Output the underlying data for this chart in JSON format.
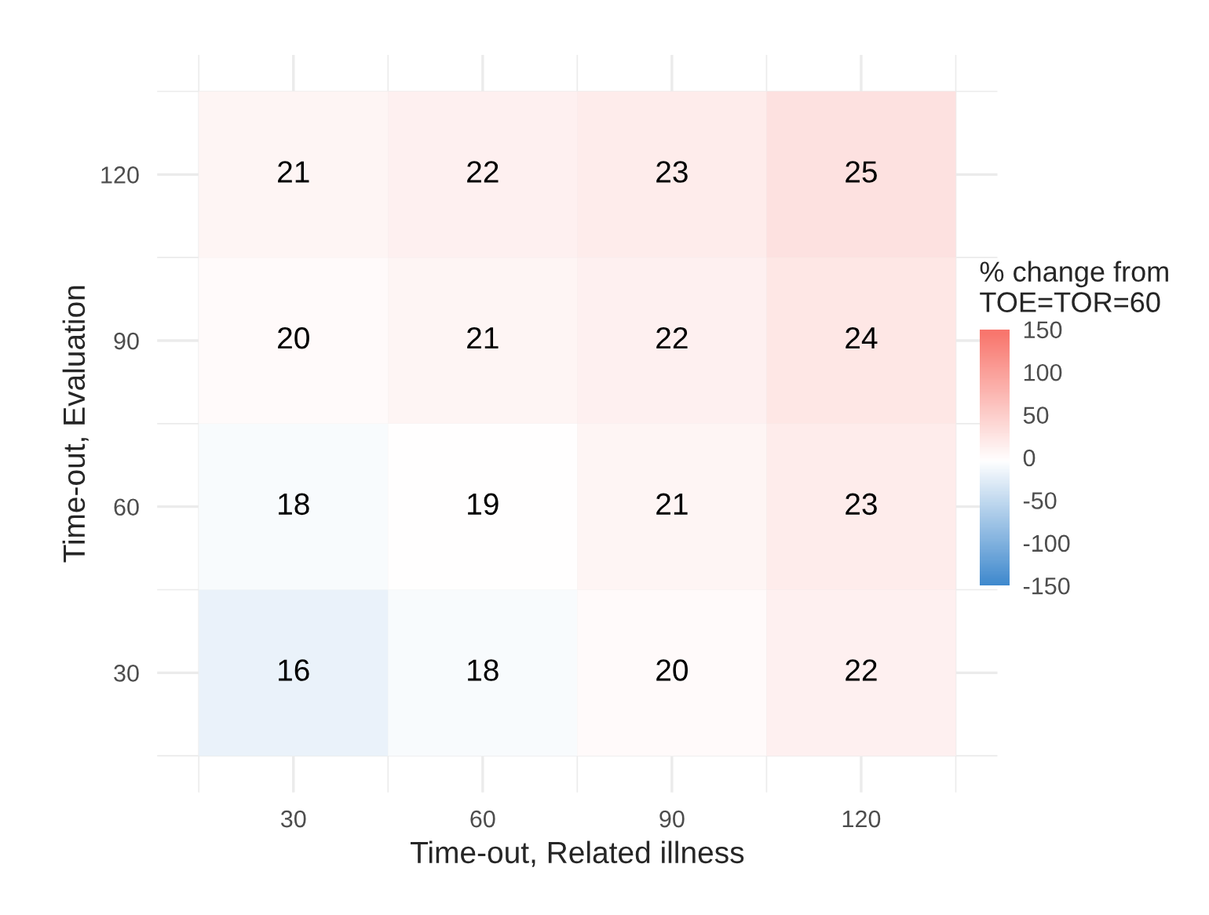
{
  "chart_data": {
    "type": "heatmap",
    "xlabel": "Time-out, Related illness",
    "ylabel": "Time-out, Evaluation",
    "categories": [
      "30",
      "60",
      "90",
      "120"
    ],
    "y_categories": [
      "120",
      "90",
      "60",
      "30"
    ],
    "cells": [
      [
        11,
        16,
        21,
        32
      ],
      [
        5,
        11,
        16,
        26
      ],
      [
        -5,
        0,
        11,
        21
      ],
      [
        -16,
        -5,
        5,
        16
      ]
    ],
    "annotations": [
      "21",
      "22",
      "23",
      "25",
      "20",
      "21",
      "22",
      "24",
      "18",
      "19",
      "21",
      "23",
      "16",
      "18",
      "20",
      "22"
    ],
    "clabel": "% change from\nTOE=TOR=60",
    "clim": [
      -150,
      150
    ],
    "cticks": [
      -150,
      -100,
      -50,
      0,
      50,
      100,
      150
    ],
    "colors": [
      "#3a86cc",
      "#ffffff",
      "#f8766d"
    ],
    "grid": true
  }
}
